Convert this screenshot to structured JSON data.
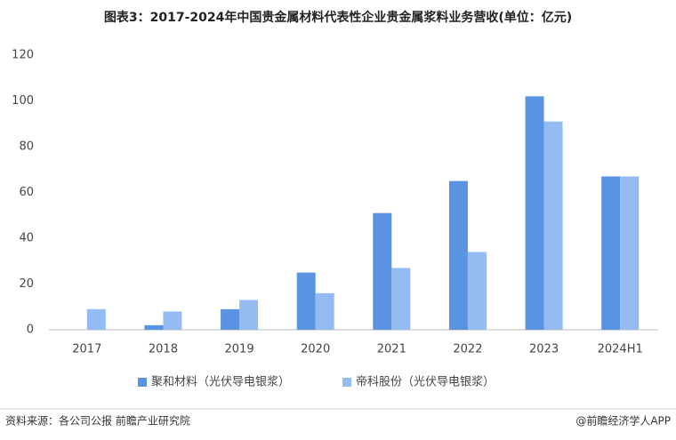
{
  "chart_data": {
    "type": "bar",
    "title": "图表3：2017-2024年中国贵金属材料代表性企业贵金属浆料业务营收(单位：亿元)",
    "categories": [
      "2017",
      "2018",
      "2019",
      "2020",
      "2021",
      "2022",
      "2023",
      "2024H1"
    ],
    "series": [
      {
        "name": "聚和材料（光伏导电银浆）",
        "color": "#5b93e3",
        "values": [
          null,
          2,
          9,
          25,
          51,
          65,
          102,
          67
        ]
      },
      {
        "name": "帝科股份（光伏导电银浆）",
        "color": "#94bbf2",
        "values": [
          9,
          8,
          13,
          16,
          27,
          34,
          91,
          67
        ]
      }
    ],
    "ylim": [
      0,
      120
    ],
    "yticks": [
      0,
      20,
      40,
      60,
      80,
      100,
      120
    ],
    "grid": false,
    "legend": "bottom",
    "source": "资料来源：各公司公报 前瞻产业研究院",
    "credit": "@前瞻经济学人APP"
  }
}
